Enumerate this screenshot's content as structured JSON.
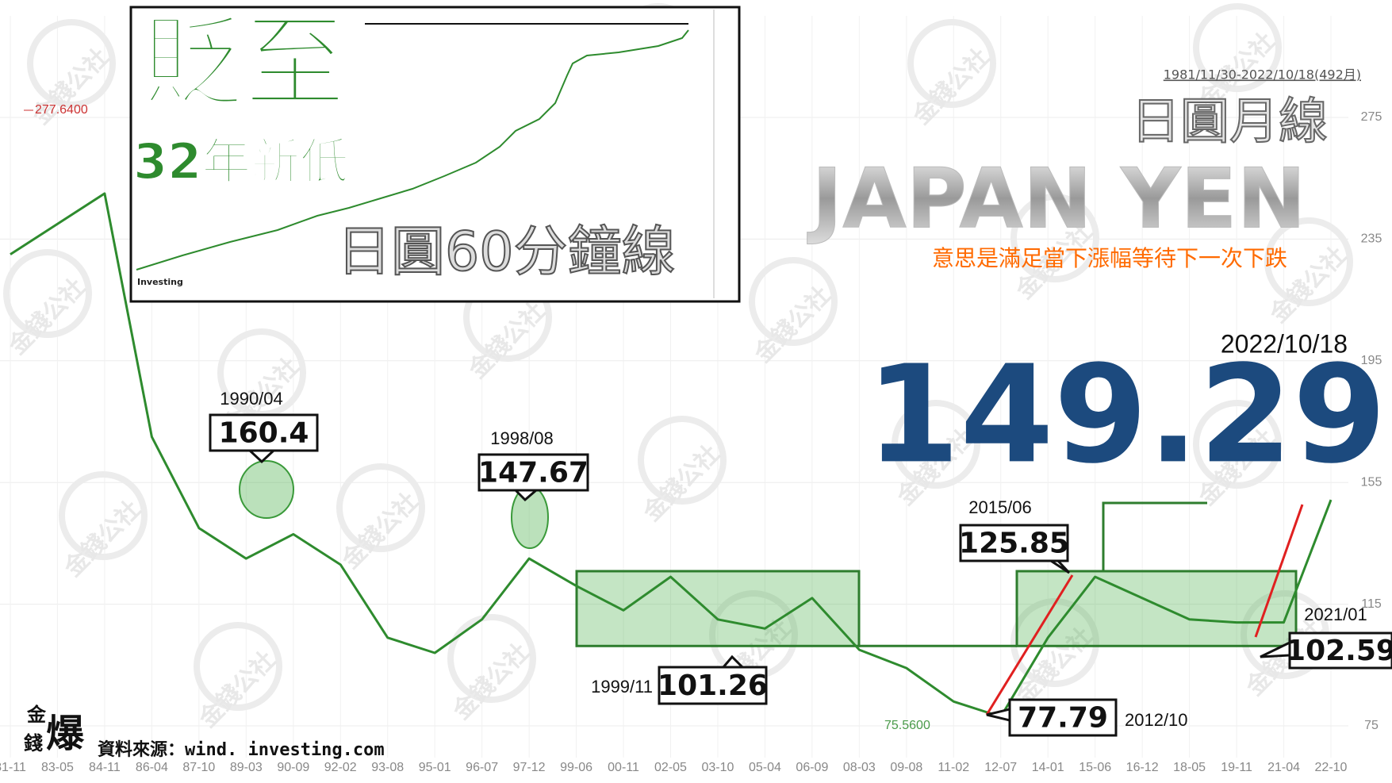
{
  "chart_data": {
    "type": "line",
    "title": "日圓月線",
    "title_en": "JAPAN YEN",
    "note": "意思是滿足當下漲幅等待下一次下跌",
    "date_range": "1981/11/30-2022/10/18(492月)",
    "latest": {
      "date": "2022/10/18",
      "value": 149.29
    },
    "categories": [
      "81-11",
      "83-05",
      "84-11",
      "86-04",
      "87-10",
      "89-03",
      "90-09",
      "92-02",
      "93-08",
      "95-01",
      "96-07",
      "97-12",
      "99-06",
      "00-11",
      "02-05",
      "03-10",
      "05-04",
      "06-09",
      "08-03",
      "09-08",
      "11-02",
      "12-07",
      "14-01",
      "15-06",
      "16-12",
      "18-05",
      "19-11",
      "21-04",
      "22-10"
    ],
    "values": [
      230,
      240,
      250,
      170,
      140,
      130,
      138,
      128,
      104,
      99,
      110,
      130,
      121,
      113,
      124,
      110,
      107,
      117,
      100,
      94,
      83,
      78,
      104,
      124,
      117,
      110,
      109,
      109,
      149.29
    ],
    "color": "#2e8b2e",
    "ylim": [
      53,
      295
    ],
    "yticks": [
      75,
      115,
      155,
      195,
      235,
      275
    ],
    "grid": true,
    "extremes": [
      {
        "value": 277.64,
        "label": "277.6400"
      },
      {
        "value": 75.56,
        "label": "75.5600"
      }
    ],
    "annotations": [
      {
        "date": "1990/04",
        "value": 160.4
      },
      {
        "date": "1998/08",
        "value": 147.67
      },
      {
        "date": "1999/11",
        "value": 101.26
      },
      {
        "date": "2012/10",
        "value": 77.79
      },
      {
        "date": "2015/06",
        "value": 125.85
      },
      {
        "date": "2021/01",
        "value": 102.59
      }
    ],
    "watermark": "金錢公社"
  },
  "inset": {
    "headline": "貶至",
    "subheadline": "32年新低",
    "caption": "日圓60分鐘線",
    "brand": "Investing"
  },
  "footer": {
    "logo_top": "金",
    "logo_mid": "錢",
    "logo_main": "爆",
    "source": "資料來源：wind. investing.com"
  }
}
